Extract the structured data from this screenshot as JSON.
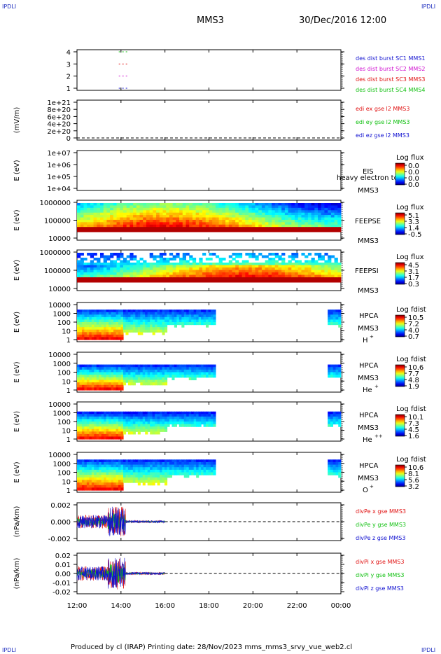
{
  "corners": {
    "tl": "IPDLI",
    "tr": "IPDLI",
    "bl": "IPDLI",
    "br": "IPDLI"
  },
  "header": {
    "spacecraft": "MMS3",
    "datetime": "30/Dec/2016 12:00"
  },
  "footer": "Produced by cl (IRAP)   Printing date: 28/Nov/2023   mms_mms3_srvy_vue_web2.cl",
  "time_axis": {
    "ticks": [
      "12:00",
      "14:00",
      "16:00",
      "18:00",
      "20:00",
      "22:00",
      "00:00"
    ],
    "start_hours": 12,
    "end_hours": 24
  },
  "colors": {
    "red": "#e01010",
    "green": "#10c010",
    "blue": "#1010d0",
    "magenta": "#d010d0",
    "dark_red": "#c00000"
  },
  "chart_data": [
    {
      "type": "line",
      "id": "burst",
      "ylabel": "",
      "yticks": [
        "4",
        "3",
        "2",
        "1"
      ],
      "legend": [
        {
          "text": "des dist burst SC1 MMS1",
          "color": "#1010d0"
        },
        {
          "text": "des dist burst SC2 MMS2",
          "color": "#d010d0"
        },
        {
          "text": "des dist burst SC3 MMS3",
          "color": "#e01010"
        },
        {
          "text": "des dist burst SC4 MMS4",
          "color": "#10c010"
        }
      ],
      "segments": [
        {
          "y": 4,
          "t0": 13.9,
          "t1": 14.35,
          "color": "#10c010"
        },
        {
          "y": 3,
          "t0": 13.9,
          "t1": 14.35,
          "color": "#e01010"
        },
        {
          "y": 2,
          "t0": 13.9,
          "t1": 14.35,
          "color": "#d010d0"
        },
        {
          "y": 1,
          "t0": 13.9,
          "t1": 14.35,
          "color": "#1010d0"
        }
      ]
    },
    {
      "type": "line",
      "id": "edi",
      "ylabel": "(mV/m)",
      "yticks": [
        "1e+21",
        "8e+20",
        "6e+20",
        "4e+20",
        "2e+20",
        "0"
      ],
      "legend": [
        {
          "text": "edi ex gse l2 MMS3",
          "color": "#e01010"
        },
        {
          "text": "edi ey gse l2 MMS3",
          "color": "#10c010"
        },
        {
          "text": "edi ez gse l2 MMS3",
          "color": "#1010d0"
        }
      ]
    },
    {
      "type": "heatmap",
      "id": "eis",
      "ylabel": "E (eV)",
      "yticks": [
        "1e+07",
        "1e+06",
        "1e+05",
        "1e+04"
      ],
      "labels": [
        "EIS",
        "heavy electron tot",
        "MMS3"
      ],
      "colorbar": {
        "title": "Log flux",
        "ticks": [
          "0.0",
          "0.0",
          "0.0",
          "0.0"
        ]
      }
    },
    {
      "type": "heatmap",
      "id": "feepse",
      "ylabel": "E (eV)",
      "yticks": [
        "1000000",
        "100000",
        "10000"
      ],
      "labels": [
        "FEEPSE",
        "MMS3"
      ],
      "colorbar": {
        "title": "Log flux",
        "ticks": [
          "5.1",
          "3.3",
          "1.4",
          "-0.5"
        ]
      }
    },
    {
      "type": "heatmap",
      "id": "feepsi",
      "ylabel": "E (eV)",
      "yticks": [
        "1000000",
        "100000",
        "10000"
      ],
      "labels": [
        "FEEPSI",
        "MMS3"
      ],
      "colorbar": {
        "title": "Log flux",
        "ticks": [
          "4.5",
          "3.1",
          "1.7",
          "0.3"
        ]
      }
    },
    {
      "type": "heatmap",
      "id": "hpca_h",
      "ylabel": "E (eV)",
      "yticks": [
        "10000",
        "1000",
        "100",
        "10",
        "1"
      ],
      "labels": [
        "HPCA",
        "MMS3",
        "H"
      ],
      "species_sup": "+",
      "colorbar": {
        "title": "Log fdist",
        "ticks": [
          "10.5",
          "7.2",
          "4.0",
          "0.7"
        ]
      }
    },
    {
      "type": "heatmap",
      "id": "hpca_he",
      "ylabel": "E (eV)",
      "yticks": [
        "10000",
        "1000",
        "100",
        "10",
        "1"
      ],
      "labels": [
        "HPCA",
        "MMS3",
        "He"
      ],
      "species_sup": "+",
      "colorbar": {
        "title": "Log fdist",
        "ticks": [
          "10.6",
          "7.7",
          "4.8",
          "1.9"
        ]
      }
    },
    {
      "type": "heatmap",
      "id": "hpca_hepp",
      "ylabel": "E (eV)",
      "yticks": [
        "10000",
        "1000",
        "100",
        "10",
        "1"
      ],
      "labels": [
        "HPCA",
        "MMS3",
        "He"
      ],
      "species_sup": "++",
      "colorbar": {
        "title": "Log fdist",
        "ticks": [
          "10.1",
          "7.3",
          "4.5",
          "1.6"
        ]
      }
    },
    {
      "type": "heatmap",
      "id": "hpca_o",
      "ylabel": "E (eV)",
      "yticks": [
        "10000",
        "1000",
        "100",
        "10",
        "1"
      ],
      "labels": [
        "HPCA",
        "MMS3",
        "O"
      ],
      "species_sup": "+",
      "colorbar": {
        "title": "Log fdist",
        "ticks": [
          "10.6",
          "8.1",
          "5.6",
          "3.2"
        ]
      }
    },
    {
      "type": "line",
      "id": "divpe",
      "ylabel": "(nPa/km)",
      "yticks": [
        "0.002",
        "0.000",
        "-0.002"
      ],
      "ylim": [
        -0.003,
        0.003
      ],
      "legend": [
        {
          "text": "divPe x gse MMS3",
          "color": "#e01010"
        },
        {
          "text": "divPe y gse MMS3",
          "color": "#10c010"
        },
        {
          "text": "divPe z gse MMS3",
          "color": "#1010d0"
        }
      ]
    },
    {
      "type": "line",
      "id": "divpi",
      "ylabel": "(nPa/km)",
      "yticks": [
        "0.02",
        "0.01",
        "0.00",
        "-0.01",
        "-0.02"
      ],
      "ylim": [
        -0.025,
        0.025
      ],
      "legend": [
        {
          "text": "divPi x gse MMS3",
          "color": "#e01010"
        },
        {
          "text": "divPi y gse MMS3",
          "color": "#10c010"
        },
        {
          "text": "divPi z gse MMS3",
          "color": "#1010d0"
        }
      ]
    }
  ]
}
